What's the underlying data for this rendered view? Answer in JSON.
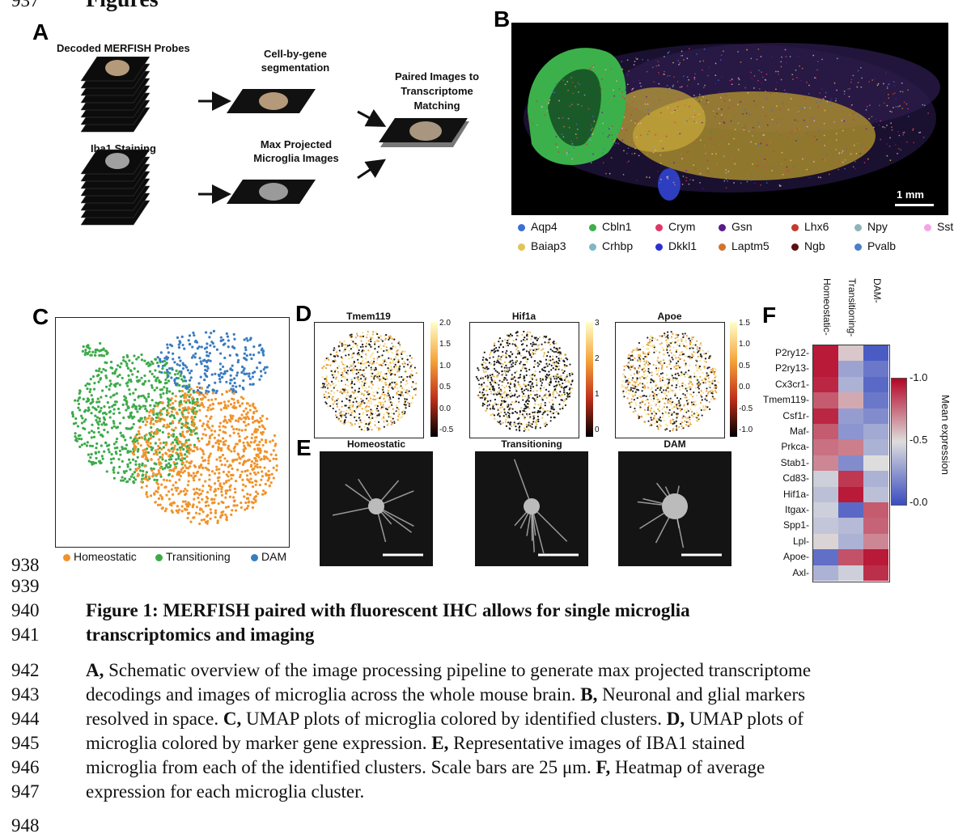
{
  "header": {
    "partial_line_number": "937",
    "partial_heading": "Figures"
  },
  "panel_a": {
    "label": "A",
    "decoded_label": "Decoded MERFISH Probes",
    "segmentation_label": "Cell-by-gene segmentation",
    "paired_label": "Paired Images to Transcriptome Matching",
    "iba1_label": "Iba1 Staining",
    "maxproj_label": "Max Projected Microglia Images"
  },
  "panel_b": {
    "label": "B",
    "scale_label": "1 mm",
    "legend_row1": [
      {
        "name": "Aqp4",
        "color": "#3b6fd1"
      },
      {
        "name": "Cbln1",
        "color": "#3cb04a"
      },
      {
        "name": "Crym",
        "color": "#e0366a"
      },
      {
        "name": "Gsn",
        "color": "#5a1a8a"
      },
      {
        "name": "Lhx6",
        "color": "#c33a2b"
      },
      {
        "name": "Npy",
        "color": "#8fb3b8"
      },
      {
        "name": "Sst",
        "color": "#f2a6e6"
      }
    ],
    "legend_row2": [
      {
        "name": "Baiap3",
        "color": "#e2c455"
      },
      {
        "name": "Crhbp",
        "color": "#7fb8c5"
      },
      {
        "name": "Dkkl1",
        "color": "#2b2fd6"
      },
      {
        "name": "Laptm5",
        "color": "#d07530"
      },
      {
        "name": "Ngb",
        "color": "#5c1010"
      },
      {
        "name": "Pvalb",
        "color": "#4a7fc9"
      }
    ]
  },
  "panel_c": {
    "label": "C",
    "legend": [
      {
        "name": "Homeostatic",
        "color": "#f0932b"
      },
      {
        "name": "Transitioning",
        "color": "#3daa4a"
      },
      {
        "name": "DAM",
        "color": "#3a7cc0"
      }
    ]
  },
  "panel_d": {
    "label": "D",
    "plots": [
      {
        "title": "Tmem119",
        "ticks": [
          "2.0",
          "1.5",
          "1.0",
          "0.5",
          "0.0",
          "-0.5"
        ]
      },
      {
        "title": "Hif1a",
        "ticks": [
          "3",
          "2",
          "1",
          "0"
        ]
      },
      {
        "title": "Apoe",
        "ticks": [
          "1.5",
          "1.0",
          "0.5",
          "0.0",
          "-0.5",
          "-1.0"
        ]
      }
    ]
  },
  "panel_e": {
    "label": "E",
    "titles": [
      "Homeostatic",
      "Transitioning",
      "DAM"
    ]
  },
  "panel_f": {
    "label": "F",
    "columns": [
      "Homeostatic",
      "Transitioning",
      "DAM"
    ],
    "rows": [
      "P2ry12",
      "P2ry13",
      "Cx3cr1",
      "Tmem119",
      "Csf1r",
      "Maf",
      "Prkca",
      "Stab1",
      "Cd83",
      "Hif1a",
      "Itgax",
      "Spp1",
      "Lpl",
      "Apoe",
      "Axl"
    ],
    "values": [
      [
        0.95,
        0.55,
        0.05
      ],
      [
        0.95,
        0.3,
        0.15
      ],
      [
        0.92,
        0.35,
        0.1
      ],
      [
        0.8,
        0.62,
        0.15
      ],
      [
        0.92,
        0.28,
        0.22
      ],
      [
        0.8,
        0.25,
        0.32
      ],
      [
        0.75,
        0.72,
        0.35
      ],
      [
        0.7,
        0.22,
        0.5
      ],
      [
        0.45,
        0.88,
        0.35
      ],
      [
        0.4,
        0.95,
        0.4
      ],
      [
        0.45,
        0.1,
        0.8
      ],
      [
        0.42,
        0.38,
        0.78
      ],
      [
        0.52,
        0.35,
        0.7
      ],
      [
        0.12,
        0.82,
        0.95
      ],
      [
        0.35,
        0.45,
        0.9
      ]
    ],
    "cbar_label": "Mean expression",
    "cbar_ticks": [
      "1.0",
      "0.5",
      "0.0"
    ]
  },
  "caption": {
    "line_numbers": [
      "938",
      "939",
      "940",
      "941",
      "942",
      "943",
      "944",
      "945",
      "946",
      "947",
      "948"
    ],
    "title_line1": "Figure 1: MERFISH paired with fluorescent IHC allows for single microglia",
    "title_line2": "transcriptomics and imaging",
    "a_bold": "A,",
    "a_text": " Schematic overview of the image processing pipeline to generate max projected transcriptome",
    "line943_text": "decodings and images of microglia across the whole mouse brain. ",
    "b_bold": "B,",
    "b_text": " Neuronal and glial markers",
    "line944_text": "resolved in space. ",
    "c_bold": "C,",
    "c_text": " UMAP plots of microglia colored by identified clusters. ",
    "d_bold": "D,",
    "d_text": " UMAP plots of",
    "line945_text": "microglia colored by marker gene expression. ",
    "e_bold": "E,",
    "e_text": " Representative images of IBA1 stained",
    "line946_text": "microglia from each of the identified clusters. Scale bars are 25 μm. ",
    "f_bold": "F,",
    "f_text": " Heatmap of average",
    "line947_text": "expression for each microglia cluster."
  }
}
